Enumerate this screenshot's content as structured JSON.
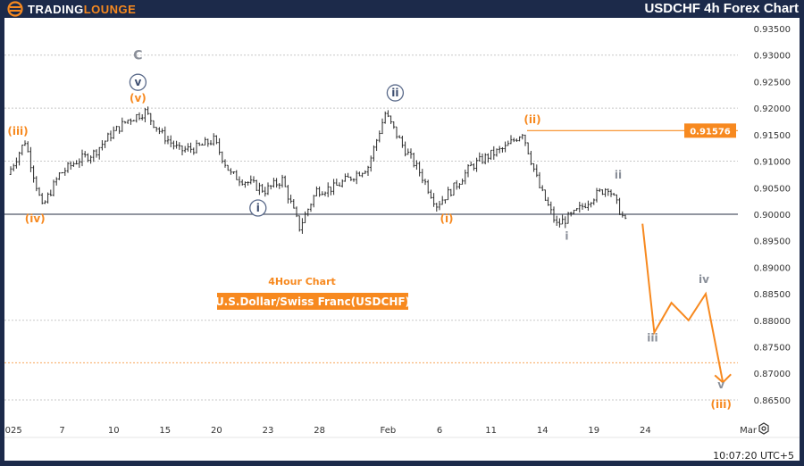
{
  "header": {
    "logo_part1": "TRADING",
    "logo_part2": "LOUNGE",
    "title": "USDCHF 4h Forex Chart"
  },
  "footer": {
    "time": "10:07:20 UTC+5"
  },
  "colors": {
    "frame": "#1c2a4a",
    "accent": "#f7891f",
    "bars": "#2b2b2b",
    "wave_grey": "#8a8f99",
    "circle_blue": "#5a6a8a"
  },
  "chart_data": {
    "type": "ohlc",
    "title": "4Hour Chart",
    "subtitle": "U.S.Dollar/Swiss Franc(USDCHF)",
    "ylim": [
      0.8635,
      0.9375
    ],
    "y_ticks": [
      "0.93500",
      "0.93000",
      "0.92500",
      "0.92000",
      "0.91500",
      "0.91000",
      "0.90500",
      "0.90000",
      "0.89500",
      "0.89000",
      "0.88500",
      "0.88000",
      "0.87500",
      "0.87000",
      "0.86500"
    ],
    "grid_dotted": [
      0.93,
      0.92,
      0.91,
      0.88,
      0.865
    ],
    "x_ticks": [
      {
        "label": "2025",
        "date": "2025-01-02"
      },
      {
        "label": "7",
        "date": "2025-01-07"
      },
      {
        "label": "10",
        "date": "2025-01-10"
      },
      {
        "label": "15",
        "date": "2025-01-15"
      },
      {
        "label": "20",
        "date": "2025-01-20"
      },
      {
        "label": "23",
        "date": "2025-01-23"
      },
      {
        "label": "28",
        "date": "2025-01-28"
      },
      {
        "label": "Feb",
        "date": "2025-02-03"
      },
      {
        "label": "6",
        "date": "2025-02-06"
      },
      {
        "label": "11",
        "date": "2025-02-11"
      },
      {
        "label": "14",
        "date": "2025-02-14"
      },
      {
        "label": "19",
        "date": "2025-02-19"
      },
      {
        "label": "24",
        "date": "2025-02-24"
      },
      {
        "label": "Mar",
        "date": "2025-03-04"
      }
    ],
    "support_line": 0.9,
    "resistance_line": {
      "price": 0.91576,
      "label": "0.91576",
      "from": "2025-02-13"
    },
    "target_line": 0.872,
    "price_path": [
      {
        "date": "2025-01-02",
        "price": 0.9075
      },
      {
        "date": "2025-01-03",
        "price": 0.9138
      },
      {
        "date": "2025-01-06",
        "price": 0.9012
      },
      {
        "date": "2025-01-07",
        "price": 0.9075
      },
      {
        "date": "2025-01-08",
        "price": 0.91
      },
      {
        "date": "2025-01-09",
        "price": 0.9115
      },
      {
        "date": "2025-01-10",
        "price": 0.915
      },
      {
        "date": "2025-01-13",
        "price": 0.9178
      },
      {
        "date": "2025-01-14",
        "price": 0.9193
      },
      {
        "date": "2025-01-15",
        "price": 0.915
      },
      {
        "date": "2025-01-16",
        "price": 0.912
      },
      {
        "date": "2025-01-17",
        "price": 0.9125
      },
      {
        "date": "2025-01-20",
        "price": 0.914
      },
      {
        "date": "2025-01-21",
        "price": 0.9075
      },
      {
        "date": "2025-01-22",
        "price": 0.906
      },
      {
        "date": "2025-01-23",
        "price": 0.9045
      },
      {
        "date": "2025-01-24",
        "price": 0.9065
      },
      {
        "date": "2025-01-27",
        "price": 0.8975
      },
      {
        "date": "2025-01-28",
        "price": 0.9045
      },
      {
        "date": "2025-01-29",
        "price": 0.905
      },
      {
        "date": "2025-01-30",
        "price": 0.907
      },
      {
        "date": "2025-01-31",
        "price": 0.909
      },
      {
        "date": "2025-02-03",
        "price": 0.919
      },
      {
        "date": "2025-02-04",
        "price": 0.913
      },
      {
        "date": "2025-02-05",
        "price": 0.908
      },
      {
        "date": "2025-02-06",
        "price": 0.9018
      },
      {
        "date": "2025-02-07",
        "price": 0.905
      },
      {
        "date": "2025-02-10",
        "price": 0.909
      },
      {
        "date": "2025-02-11",
        "price": 0.911
      },
      {
        "date": "2025-02-12",
        "price": 0.9125
      },
      {
        "date": "2025-02-13",
        "price": 0.9155
      },
      {
        "date": "2025-02-14",
        "price": 0.905
      },
      {
        "date": "2025-02-17",
        "price": 0.898
      },
      {
        "date": "2025-02-18",
        "price": 0.9
      },
      {
        "date": "2025-02-19",
        "price": 0.903
      },
      {
        "date": "2025-02-20",
        "price": 0.9052
      },
      {
        "date": "2025-02-21",
        "price": 0.8985
      }
    ],
    "projection": [
      {
        "date": "2025-02-21",
        "price": 0.8982
      },
      {
        "date": "2025-02-24",
        "price": 0.8777
      },
      {
        "date": "2025-02-25",
        "price": 0.8833
      },
      {
        "date": "2025-02-26",
        "price": 0.88
      },
      {
        "date": "2025-02-27",
        "price": 0.885
      },
      {
        "date": "2025-02-28",
        "price": 0.8683
      }
    ],
    "wave_labels": [
      {
        "text": "(iii)",
        "style": "orange",
        "date": "2025-01-02",
        "price": 0.915
      },
      {
        "text": "(iv)",
        "style": "orange",
        "date": "2025-01-03",
        "price": 0.8985
      },
      {
        "text": "C",
        "style": "grey",
        "date": "2025-01-13",
        "price": 0.9292
      },
      {
        "text": "v",
        "style": "circle",
        "date": "2025-01-13",
        "price": 0.9242
      },
      {
        "text": "(v)",
        "style": "orange",
        "date": "2025-01-13",
        "price": 0.9212
      },
      {
        "text": "i",
        "style": "circle",
        "date": "2025-01-22",
        "price": 0.9005
      },
      {
        "text": "ii",
        "style": "circle",
        "date": "2025-02-03",
        "price": 0.9222
      },
      {
        "text": "(i)",
        "style": "orange",
        "date": "2025-02-06",
        "price": 0.8985
      },
      {
        "text": "(ii)",
        "style": "orange",
        "date": "2025-02-13",
        "price": 0.9172
      },
      {
        "text": "i",
        "style": "grey",
        "date": "2025-02-17",
        "price": 0.8952
      },
      {
        "text": "ii",
        "style": "grey",
        "date": "2025-02-20",
        "price": 0.9067
      },
      {
        "text": "iii",
        "style": "grey",
        "date": "2025-02-24",
        "price": 0.876
      },
      {
        "text": "iv",
        "style": "grey",
        "date": "2025-02-27",
        "price": 0.887
      },
      {
        "text": "v",
        "style": "grey",
        "date": "2025-02-28",
        "price": 0.8665
      },
      {
        "text": "(iii)",
        "style": "orange",
        "date": "2025-02-28",
        "price": 0.864
      }
    ]
  }
}
